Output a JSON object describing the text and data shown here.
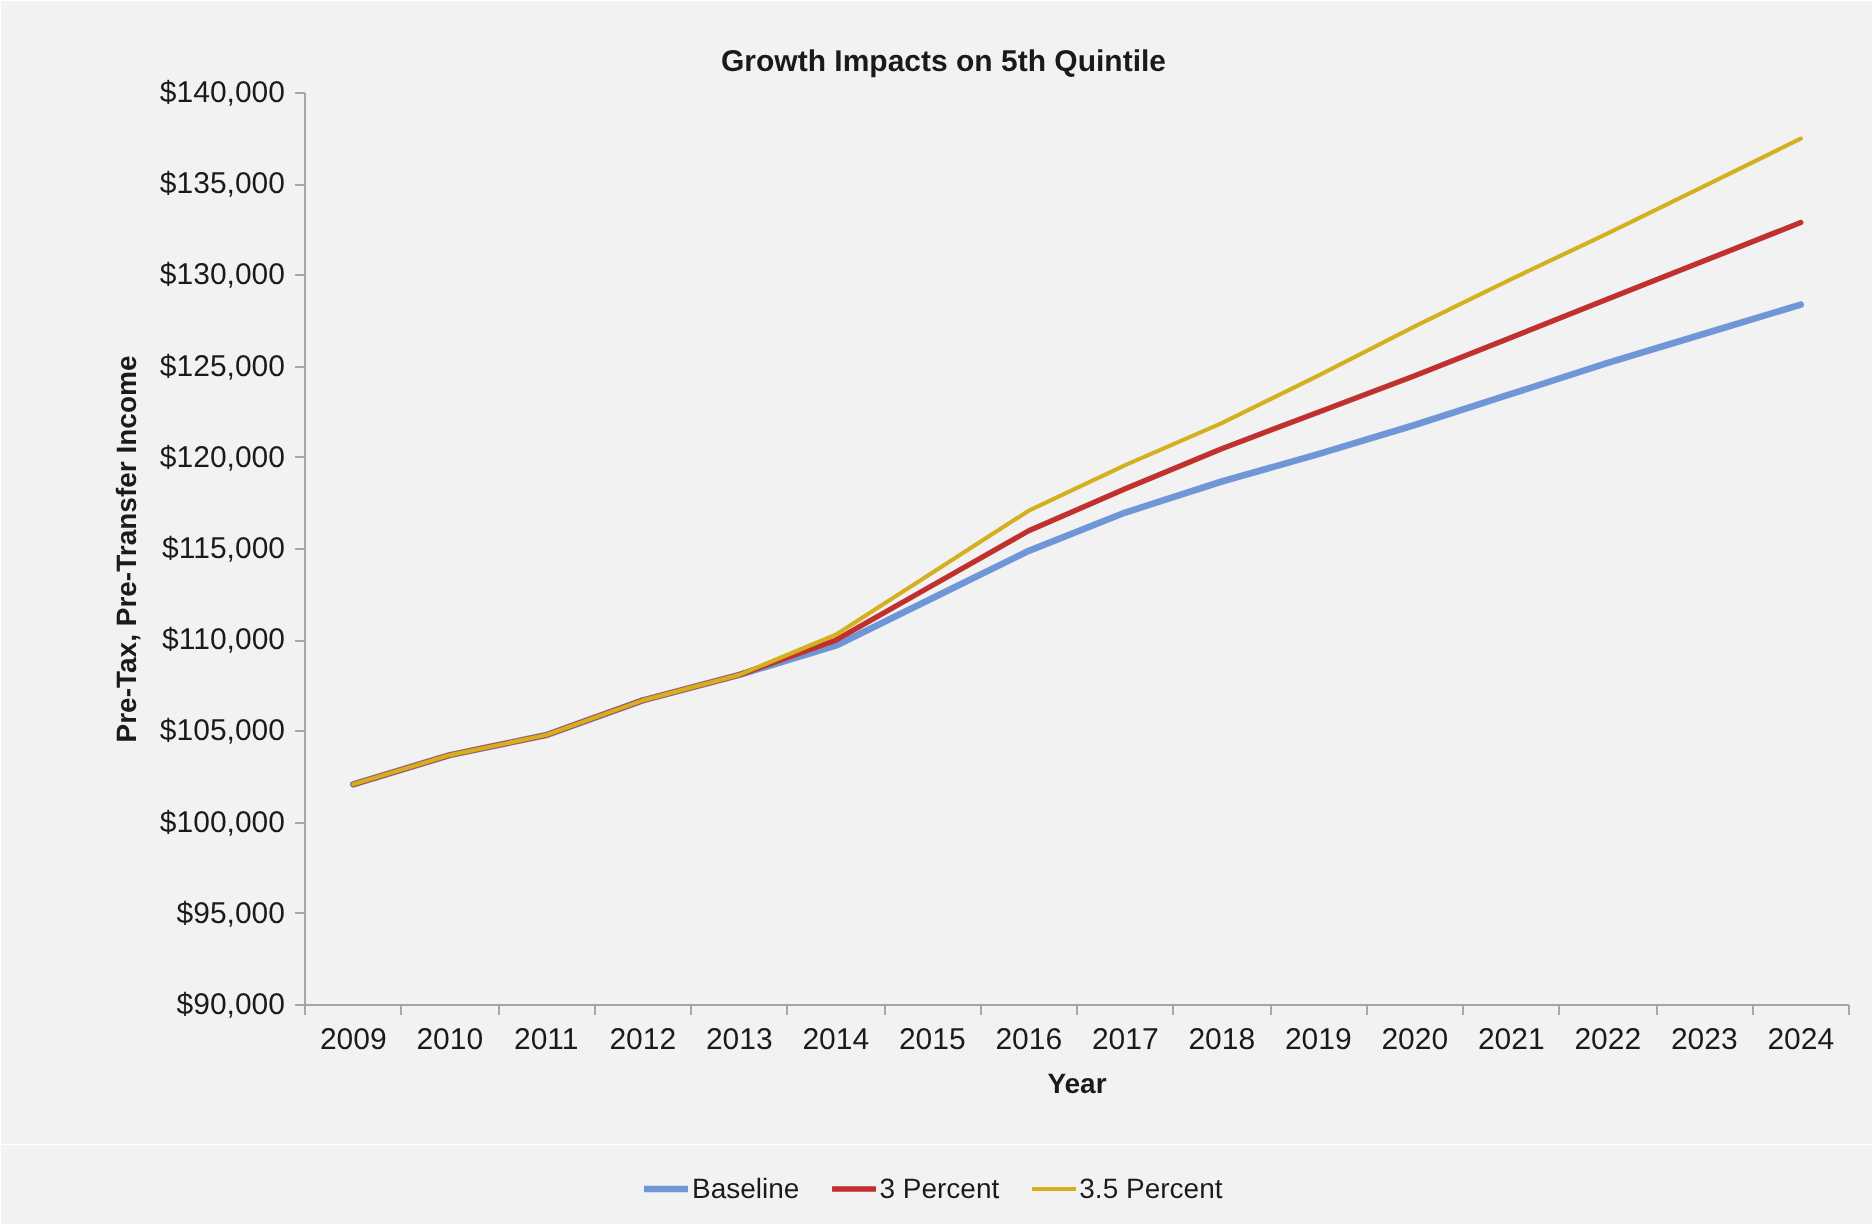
{
  "chart_data": {
    "type": "line",
    "title": "Growth Impacts on 5th Quintile",
    "xlabel": "Year",
    "ylabel": "Pre-Tax, Pre-Transfer Income",
    "categories": [
      "2009",
      "2010",
      "2011",
      "2012",
      "2013",
      "2014",
      "2015",
      "2016",
      "2017",
      "2018",
      "2019",
      "2020",
      "2021",
      "2022",
      "2023",
      "2024"
    ],
    "series": [
      {
        "name": "Baseline",
        "color": "#6f96d6",
        "values": [
          102100,
          103700,
          104800,
          106700,
          108100,
          109700,
          112300,
          114900,
          117000,
          118700,
          120200,
          121800,
          123500,
          125200,
          126800,
          128400
        ]
      },
      {
        "name": "3 Percent",
        "color": "#c0312e",
        "values": [
          102100,
          103700,
          104800,
          106700,
          108100,
          110000,
          113000,
          116000,
          118300,
          120500,
          122500,
          124500,
          126600,
          128700,
          130800,
          132900
        ]
      },
      {
        "name": "3.5 Percent",
        "color": "#d4b020",
        "values": [
          102100,
          103700,
          104800,
          106700,
          108100,
          110300,
          113700,
          117100,
          119600,
          121900,
          124500,
          127200,
          129800,
          132300,
          134900,
          137500
        ]
      }
    ],
    "ylim": [
      90000,
      140000
    ],
    "yticks": [
      {
        "value": 90000,
        "label": "$90,000"
      },
      {
        "value": 95000,
        "label": "$95,000"
      },
      {
        "value": 100000,
        "label": "$100,000"
      },
      {
        "value": 105000,
        "label": "$105,000"
      },
      {
        "value": 110000,
        "label": "$110,000"
      },
      {
        "value": 115000,
        "label": "$115,000"
      },
      {
        "value": 120000,
        "label": "$120,000"
      },
      {
        "value": 125000,
        "label": "$125,000"
      },
      {
        "value": 130000,
        "label": "$130,000"
      },
      {
        "value": 135000,
        "label": "$135,000"
      },
      {
        "value": 140000,
        "label": "$140,000"
      }
    ],
    "grid": false,
    "legend": "bottom",
    "marker": "none",
    "line_style": "solid"
  }
}
